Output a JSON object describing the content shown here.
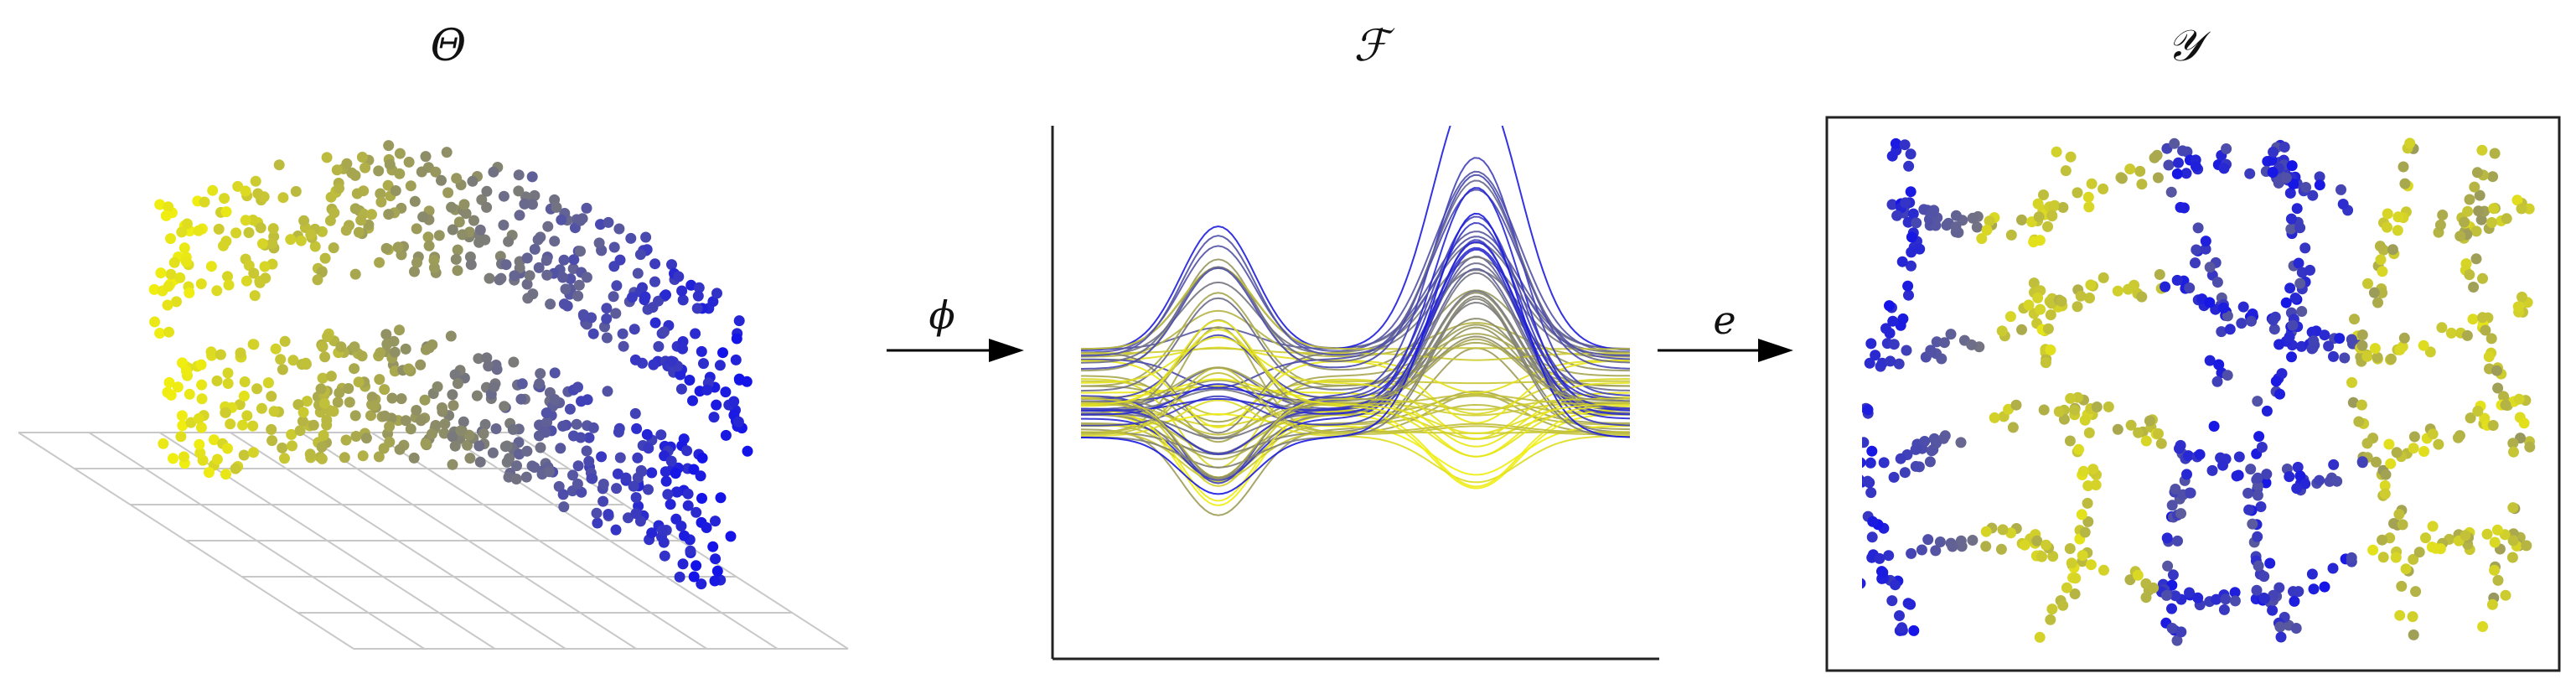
{
  "panels": [
    {
      "id": "theta",
      "symbol": "Θ"
    },
    {
      "id": "functions",
      "symbol": "ℱ"
    },
    {
      "id": "embedding",
      "symbol": "𝒴"
    }
  ],
  "arrows": [
    {
      "id": "phi",
      "label": "ϕ"
    },
    {
      "id": "e",
      "label": "e"
    }
  ],
  "colors": {
    "gradient_start": "#f0ee10",
    "gradient_mid": "#8a8a6a",
    "gradient_end": "#1414e8",
    "axis": "#222222",
    "grid": "#c8c8c8",
    "text": "#111111"
  }
}
